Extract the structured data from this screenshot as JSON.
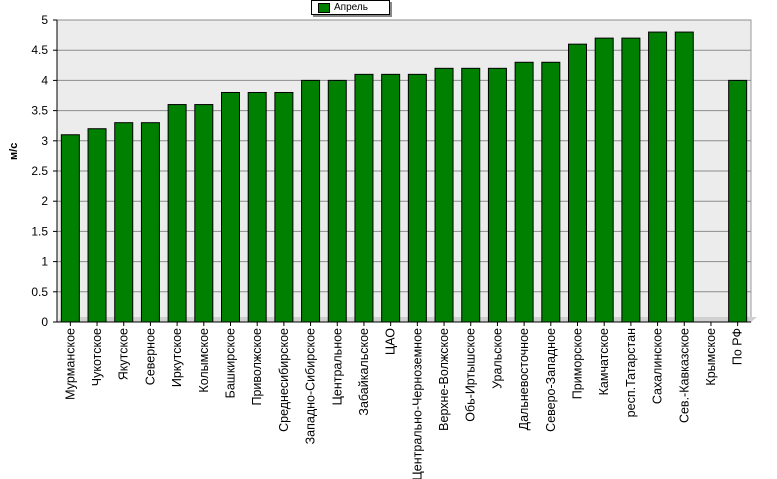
{
  "chart_data": {
    "type": "bar",
    "title": "",
    "xlabel": "",
    "ylabel": "м/с",
    "ylim": [
      0,
      5
    ],
    "yticks": [
      "0",
      "0.5",
      "1",
      "1.5",
      "2",
      "2.5",
      "3",
      "3.5",
      "4",
      "4.5",
      "5"
    ],
    "grid": true,
    "legend": "top-center",
    "categories": [
      "Мурманское",
      "Чукотское",
      "Якутское",
      "Северное",
      "Иркутское",
      "Колымское",
      "Башкирское",
      "Приволжское",
      "Среднесибирское",
      "Западно-Сибирское",
      "Центральное",
      "Забайкальское",
      "ЦАО",
      "Центрально-Черноземное",
      "Верхне-Волжское",
      "Обь-Иртышское",
      "Уральское",
      "Дальневосточное",
      "Северо-Западное",
      "Приморское",
      "Камчатское",
      "респ.Татарстан",
      "Сахалинское",
      "Сев.-Кавказское",
      "Крымское",
      "По РФ"
    ],
    "series": [
      {
        "name": "Апрель",
        "color": "#008000",
        "values": [
          3.1,
          3.2,
          3.3,
          3.3,
          3.6,
          3.6,
          3.8,
          3.8,
          3.8,
          4.0,
          4.0,
          4.1,
          4.1,
          4.1,
          4.2,
          4.2,
          4.2,
          4.3,
          4.3,
          4.6,
          4.7,
          4.7,
          4.8,
          4.8,
          null,
          4.0
        ]
      }
    ]
  }
}
